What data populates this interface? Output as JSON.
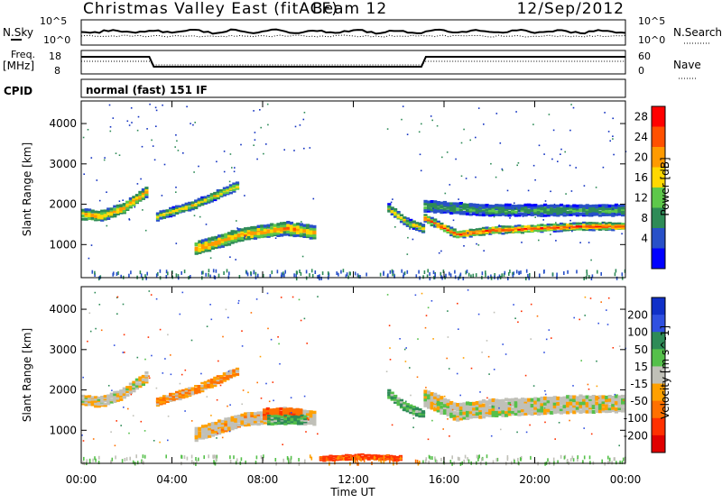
{
  "header": {
    "title": "Christmas Valley East (fitACF)",
    "beam": "Beam 12",
    "date": "12/Sep/2012"
  },
  "aux_panel": {
    "nsky_label": "N.Sky",
    "nsearch_label": "N.Search",
    "freq_label_1": "Freq.",
    "freq_label_2": "[MHz]",
    "nave_label": "Nave",
    "cpid_label": "CPID",
    "cpid_value": "normal (fast) 151 IF",
    "noise_ticks_left": [
      "10^5",
      "10^0"
    ],
    "noise_ticks_right": [
      "10^5",
      "10^0"
    ],
    "freq_ticks": [
      "18",
      "8"
    ],
    "nave_ticks": [
      "60",
      "0"
    ]
  },
  "power_colorbar": {
    "label": "Power [dB]",
    "ticks": [
      "28",
      "24",
      "20",
      "16",
      "12",
      "8",
      "4"
    ],
    "colors": [
      "#ff0000",
      "#ff5000",
      "#ff9a00",
      "#ffd800",
      "#5dc84a",
      "#2e8b57",
      "#2850c8",
      "#0000ff"
    ]
  },
  "velocity_colorbar": {
    "label": "Velocity [m s^-1]",
    "ticks": [
      "200",
      "100",
      "50",
      "15",
      "-15",
      "-50",
      "-100",
      "-200"
    ],
    "colors": [
      "#1030c8",
      "#3050e0",
      "#2e8b57",
      "#55c04a",
      "#c0c0b8",
      "#ffa000",
      "#ff7000",
      "#ff3000",
      "#e00000"
    ]
  },
  "xaxis": {
    "label": "Time UT",
    "ticks": [
      "00:00",
      "04:00",
      "08:00",
      "12:00",
      "16:00",
      "20:00",
      "00:00"
    ]
  },
  "chart_data": [
    {
      "type": "heatmap",
      "title": "Christmas Valley East (fitACF)",
      "quantity": "Power [dB]",
      "ylabel": "Slant Range [km]",
      "yticks": [
        "4000",
        "3000",
        "2000",
        "1000"
      ],
      "ylim": [
        180,
        4560
      ],
      "xlabel": "Time UT",
      "xlim": [
        0,
        24
      ],
      "clim": [
        0,
        30
      ],
      "bands": [
        {
          "t": [
            0.0,
            0.8,
            1.8,
            2.8
          ],
          "center": [
            1750,
            1700,
            1900,
            2300
          ],
          "width": 260,
          "peak": 22
        },
        {
          "t": [
            3.3,
            5.0,
            6.8
          ],
          "center": [
            1700,
            2000,
            2450
          ],
          "width": 200,
          "peak": 18
        },
        {
          "t": [
            5.0,
            7.0,
            9.0,
            10.2
          ],
          "center": [
            900,
            1250,
            1400,
            1300
          ],
          "width": 320,
          "peak": 22
        },
        {
          "t": [
            13.5,
            14.3,
            15.0
          ],
          "center": [
            1900,
            1550,
            1400
          ],
          "width": 200,
          "peak": 18
        },
        {
          "t": [
            15.1,
            16.5,
            18.0,
            20.0,
            22.0,
            23.8
          ],
          "center": [
            1650,
            1250,
            1350,
            1400,
            1450,
            1450
          ],
          "width": 180,
          "peak": 27
        },
        {
          "t": [
            15.1,
            18.0,
            23.8
          ],
          "center": [
            1950,
            1850,
            1850
          ],
          "width": 280,
          "peak": 12
        }
      ]
    },
    {
      "type": "heatmap",
      "quantity": "Velocity [m s^-1]",
      "ylabel": "Slant Range [km]",
      "yticks": [
        "4000",
        "3000",
        "2000",
        "1000"
      ],
      "ylim": [
        180,
        4560
      ],
      "xlabel": "Time UT",
      "xlim": [
        0,
        24
      ],
      "clim": [
        -200,
        200
      ],
      "bands": [
        {
          "t": [
            0.0,
            0.8,
            1.8,
            2.8
          ],
          "center": [
            1750,
            1700,
            1900,
            2300
          ],
          "width": 260,
          "velocity": -5
        },
        {
          "t": [
            3.3,
            5.0,
            6.8
          ],
          "center": [
            1700,
            2000,
            2450
          ],
          "width": 200,
          "velocity": -30
        },
        {
          "t": [
            5.0,
            7.0,
            9.0,
            10.2
          ],
          "center": [
            900,
            1250,
            1400,
            1300
          ],
          "width": 320,
          "velocity": -10
        },
        {
          "t": [
            8.0,
            9.6
          ],
          "center": [
            1400,
            1400
          ],
          "width": 280,
          "velocity": -60
        },
        {
          "t": [
            8.2,
            9.8
          ],
          "center": [
            1250,
            1250
          ],
          "width": 220,
          "velocity": 30
        },
        {
          "t": [
            13.5,
            14.3,
            15.0
          ],
          "center": [
            1900,
            1550,
            1400
          ],
          "width": 200,
          "velocity": 30
        },
        {
          "t": [
            15.1,
            16.5,
            18.0,
            20.0,
            22.0,
            23.8
          ],
          "center": [
            1800,
            1450,
            1550,
            1600,
            1650,
            1650
          ],
          "width": 420,
          "velocity": 0
        },
        {
          "t": [
            10.5,
            12.5,
            14.0
          ],
          "center": [
            300,
            340,
            300
          ],
          "width": 120,
          "velocity": -90
        }
      ]
    }
  ]
}
